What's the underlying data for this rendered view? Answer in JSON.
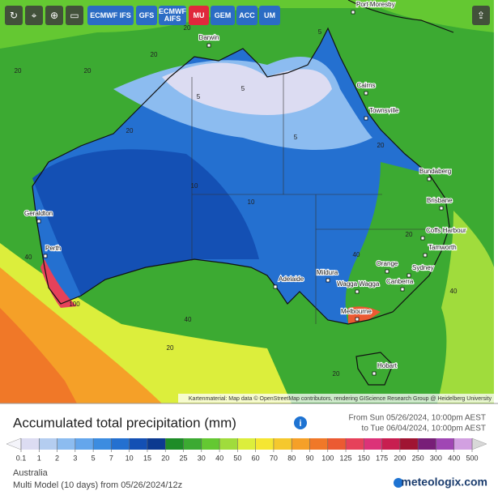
{
  "toolbar": {
    "models": [
      "ECMWF IFS",
      "GFS",
      "ECMWF AIFS",
      "MU",
      "GEM",
      "ACC",
      "UM"
    ],
    "active": "MU"
  },
  "map": {
    "cities": [
      "Port Moresby",
      "Darwin",
      "Cairns",
      "Townsville",
      "Bundaberg",
      "Brisbane",
      "Coffs Harbour",
      "Tamworth",
      "Orange",
      "Sydney",
      "Canberra",
      "Wagga Wagga",
      "Mildura",
      "Adelaide",
      "Melbourne",
      "Hobart",
      "Perth",
      "Geraldton"
    ],
    "contour_labels": [
      "20",
      "5",
      "20",
      "20",
      "5",
      "5",
      "20",
      "10",
      "5",
      "20",
      "40",
      "100",
      "40",
      "20",
      "40",
      "20",
      "10",
      "20",
      "40",
      "20"
    ],
    "attribution": "Kartenmaterial: Map data © OpenStreetMap contributors, rendering GIScience Research Group @ Heidelberg University"
  },
  "panel": {
    "title": "Accumulated total precipitation (mm)",
    "period_from": "From Sun 05/26/2024, 10:00pm AEST",
    "period_to": "to Tue 06/04/2024, 10:00pm AEST",
    "legend": {
      "values": [
        0.1,
        1,
        2,
        3,
        5,
        7,
        10,
        15,
        20,
        25,
        30,
        40,
        50,
        60,
        70,
        80,
        90,
        100,
        125,
        150,
        175,
        200,
        250,
        300,
        400,
        500
      ],
      "colors": [
        "#dcdcf2",
        "#b4cdf0",
        "#8cbcf0",
        "#64a6ec",
        "#3c8ce0",
        "#2470d0",
        "#1450b4",
        "#0c3a90",
        "#1e8c28",
        "#3caa32",
        "#64c832",
        "#a0dc3c",
        "#dcee3c",
        "#f5e632",
        "#f5c82d",
        "#f5a028",
        "#f07828",
        "#eb5a32",
        "#e6415a",
        "#dc3278",
        "#c81e50",
        "#a01432",
        "#781e78",
        "#a046b4",
        "#d2a0e1"
      ]
    },
    "region": "Australia",
    "model_run": "Multi Model (10 days) from 05/26/2024/12z",
    "brand": "meteologix.com"
  }
}
